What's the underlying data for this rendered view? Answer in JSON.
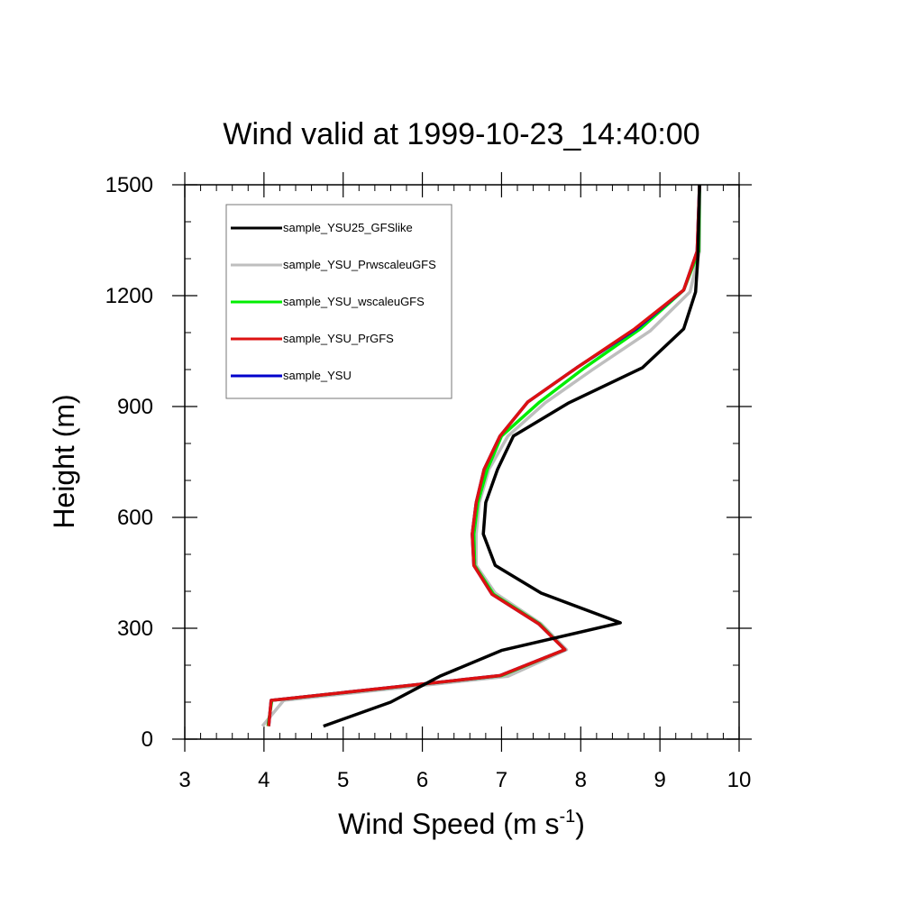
{
  "chart_data": {
    "type": "line",
    "title": "Wind valid at 1999-10-23_14:40:00",
    "xlabel": "Wind Speed (m s",
    "xlabel_superscript": "-1",
    "xlabel_suffix": ")",
    "ylabel": "Height (m)",
    "xlim": [
      3,
      10
    ],
    "ylim": [
      0,
      1500
    ],
    "xticks": [
      3,
      4,
      5,
      6,
      7,
      8,
      9,
      10
    ],
    "yticks": [
      0,
      300,
      600,
      900,
      1200,
      1500
    ],
    "grid": false,
    "legend_position": "top-left",
    "series": [
      {
        "name": "sample_YSU25_GFSlike",
        "color": "#000000",
        "points": [
          [
            4.75,
            35
          ],
          [
            5.6,
            100
          ],
          [
            6.22,
            170
          ],
          [
            7.0,
            240
          ],
          [
            8.5,
            315
          ],
          [
            7.5,
            395
          ],
          [
            6.92,
            470
          ],
          [
            6.77,
            555
          ],
          [
            6.8,
            640
          ],
          [
            6.95,
            730
          ],
          [
            7.15,
            820
          ],
          [
            7.85,
            910
          ],
          [
            8.78,
            1005
          ],
          [
            9.3,
            1110
          ],
          [
            9.45,
            1210
          ],
          [
            9.48,
            1305
          ],
          [
            9.5,
            1500
          ]
        ]
      },
      {
        "name": "sample_YSU_PrwscaleuGFS",
        "color": "#bebebe",
        "points": [
          [
            3.98,
            35
          ],
          [
            4.25,
            105
          ],
          [
            7.08,
            170
          ],
          [
            7.82,
            242
          ],
          [
            7.5,
            312
          ],
          [
            6.92,
            395
          ],
          [
            6.68,
            470
          ],
          [
            6.68,
            555
          ],
          [
            6.72,
            640
          ],
          [
            6.84,
            730
          ],
          [
            7.08,
            820
          ],
          [
            7.55,
            910
          ],
          [
            8.15,
            1000
          ],
          [
            8.88,
            1105
          ],
          [
            9.38,
            1210
          ],
          [
            9.5,
            1320
          ],
          [
            9.5,
            1500
          ]
        ]
      },
      {
        "name": "sample_YSU_wscaleuGFS",
        "color": "#00ee00",
        "points": [
          [
            4.05,
            35
          ],
          [
            4.1,
            105
          ],
          [
            7.0,
            172
          ],
          [
            7.8,
            242
          ],
          [
            7.48,
            312
          ],
          [
            6.9,
            392
          ],
          [
            6.66,
            470
          ],
          [
            6.65,
            555
          ],
          [
            6.7,
            640
          ],
          [
            6.82,
            730
          ],
          [
            7.0,
            820
          ],
          [
            7.48,
            912
          ],
          [
            8.05,
            1005
          ],
          [
            8.75,
            1110
          ],
          [
            9.3,
            1215
          ],
          [
            9.49,
            1320
          ],
          [
            9.5,
            1500
          ]
        ]
      },
      {
        "name": "sample_YSU_PrGFS",
        "color": "#dd1111",
        "points": [
          [
            4.06,
            35
          ],
          [
            4.09,
            105
          ],
          [
            6.98,
            172
          ],
          [
            7.8,
            242
          ],
          [
            7.47,
            312
          ],
          [
            6.88,
            392
          ],
          [
            6.65,
            470
          ],
          [
            6.63,
            555
          ],
          [
            6.68,
            640
          ],
          [
            6.78,
            730
          ],
          [
            6.98,
            820
          ],
          [
            7.33,
            912
          ],
          [
            7.95,
            1005
          ],
          [
            8.68,
            1110
          ],
          [
            9.3,
            1215
          ],
          [
            9.47,
            1320
          ],
          [
            9.5,
            1500
          ]
        ]
      },
      {
        "name": "sample_YSU",
        "color": "#0000cc",
        "points": [
          [
            4.06,
            35
          ],
          [
            4.09,
            105
          ],
          [
            6.98,
            172
          ],
          [
            7.8,
            242
          ],
          [
            7.47,
            312
          ],
          [
            6.88,
            392
          ],
          [
            6.65,
            470
          ],
          [
            6.63,
            555
          ],
          [
            6.68,
            640
          ],
          [
            6.78,
            730
          ],
          [
            6.98,
            820
          ],
          [
            7.33,
            912
          ],
          [
            7.95,
            1005
          ],
          [
            8.7,
            1110
          ],
          [
            9.3,
            1215
          ],
          [
            9.47,
            1320
          ],
          [
            9.5,
            1500
          ]
        ]
      }
    ]
  }
}
